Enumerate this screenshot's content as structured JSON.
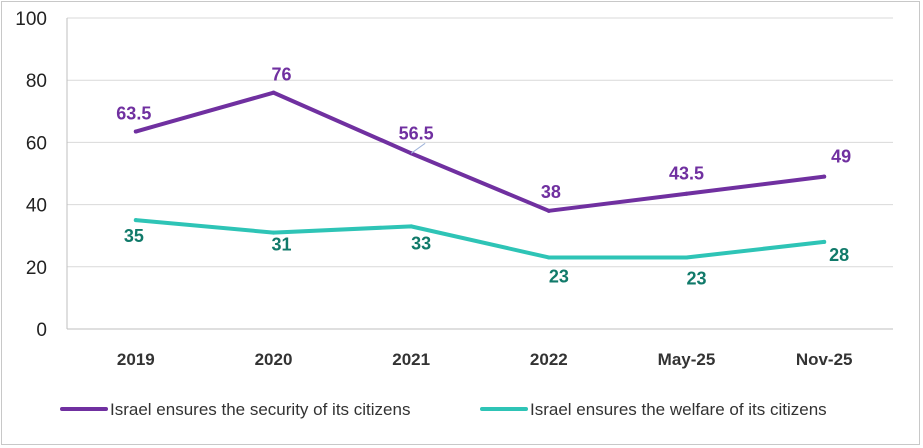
{
  "chart_data": {
    "type": "line",
    "categories": [
      "2019",
      "2020",
      "2021",
      "2022",
      "May-25",
      "Nov-25"
    ],
    "series": [
      {
        "name": "Israel ensures the security of its citizens",
        "color": "#7030a0",
        "values": [
          63.5,
          76,
          56.5,
          38,
          43.5,
          49
        ],
        "labels": [
          "63.5",
          "76",
          "56.5",
          "38",
          "43.5",
          "49"
        ]
      },
      {
        "name": "Israel ensures the welfare of its citizens",
        "color": "#2ec4b6",
        "label_color": "#117a6a",
        "values": [
          35,
          31,
          33,
          23,
          23,
          28
        ],
        "labels": [
          "35",
          "31",
          "33",
          "23",
          "23",
          "28"
        ]
      }
    ],
    "ylim": [
      0,
      100
    ],
    "yticks": [
      0,
      20,
      40,
      60,
      80,
      100
    ],
    "ytick_labels": [
      "0",
      "20",
      "40",
      "60",
      "80",
      "100"
    ],
    "grid": true,
    "legend": "bottom",
    "title": "",
    "xlabel": "",
    "ylabel": ""
  }
}
